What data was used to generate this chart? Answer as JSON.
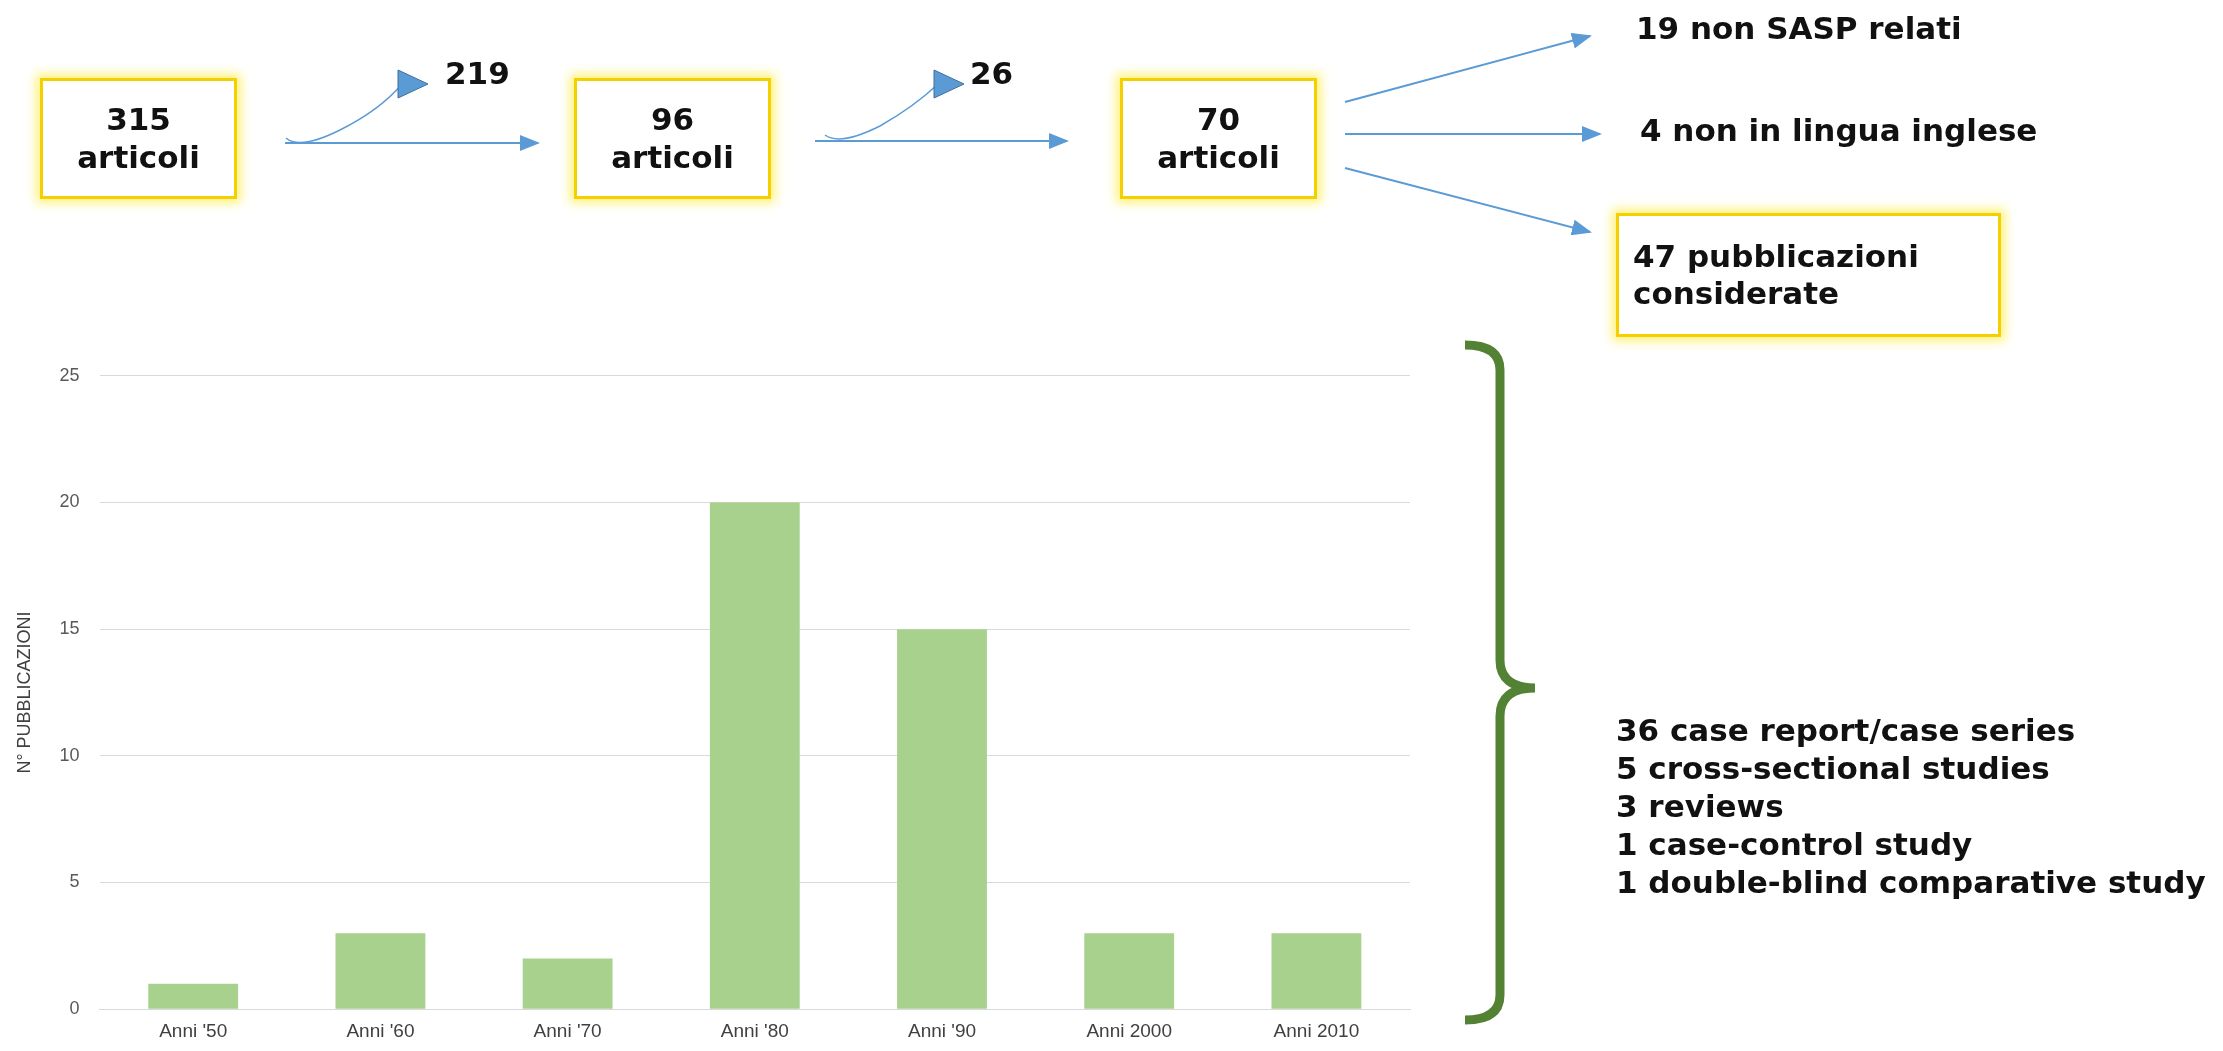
{
  "chart_data": {
    "type": "bar",
    "ylabel": "N° PUBBLICAZIONI",
    "categories": [
      "Anni '50",
      "Anni '60",
      "Anni '70",
      "Anni '80",
      "Anni '90",
      "Anni 2000",
      "Anni 2010"
    ],
    "values": [
      1,
      3,
      2,
      20,
      15,
      3,
      3
    ],
    "color": "#a9d18e",
    "ylim": [
      0,
      25
    ],
    "yticks": [
      0,
      5,
      10,
      15,
      20,
      25
    ],
    "grid": "y",
    "legend": false,
    "annotations": [
      "315 articoli",
      "219",
      "96 articoli",
      "26",
      "70 articoli",
      "19 non SASP relati",
      "4 non in lingua inglese",
      "47 pubblicazioni considerate",
      "36 case report/case series",
      "5 cross-sectional studies",
      "3 reviews",
      "1 case-control study",
      "1 double-blind comparative study"
    ]
  }
}
